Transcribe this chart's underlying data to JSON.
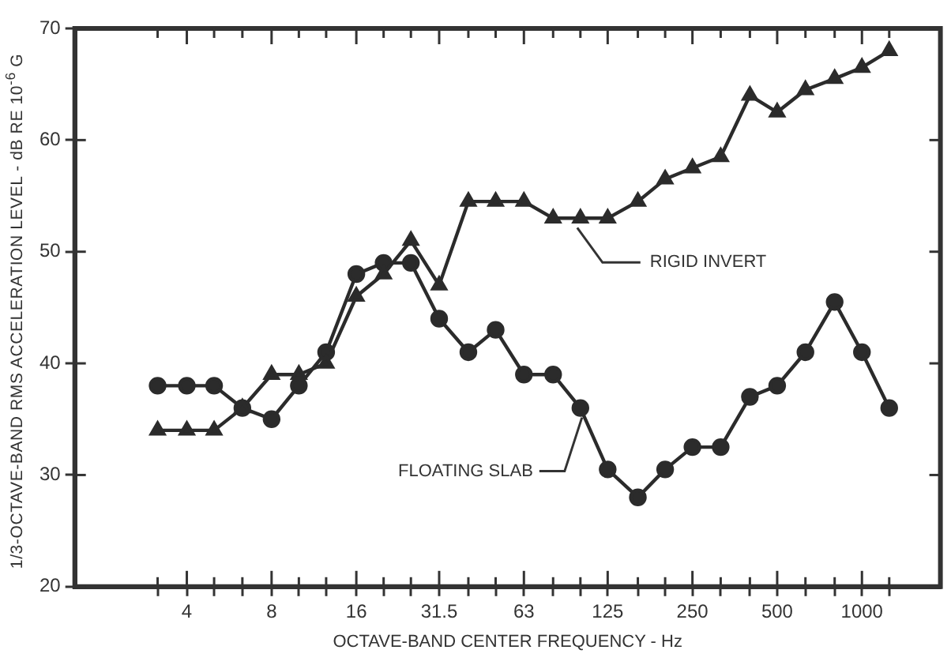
{
  "chart_data": {
    "type": "line",
    "xlabel": "OCTAVE-BAND CENTER FREQUENCY - Hz",
    "ylabel": "1/3-OCTAVE-BAND RMS ACCELERATION LEVEL - dB RE 10$^{-6}$ G",
    "x": [
      3.15,
      4,
      5,
      6.3,
      8,
      10,
      12.5,
      16,
      20,
      25,
      31.5,
      40,
      50,
      63,
      80,
      100,
      125,
      160,
      200,
      250,
      315,
      400,
      500,
      630,
      800,
      1000,
      1250
    ],
    "series": [
      {
        "color": "#2b2b2b",
        "marker": "triangle",
        "values": [
          34,
          34,
          34,
          36,
          39,
          39,
          40,
          46,
          48,
          51,
          47,
          54.5,
          54.5,
          54.5,
          53,
          53,
          53,
          54.5,
          56.5,
          57.5,
          58.5,
          64,
          62.5,
          64.5,
          65.5,
          66.5,
          68
        ]
      },
      {
        "color": "#2b2b2b",
        "marker": "circle",
        "values": [
          38,
          38,
          38,
          36,
          35,
          38,
          41,
          48,
          49,
          49,
          44,
          41,
          43,
          39,
          39,
          36,
          30.5,
          28,
          30.5,
          32.5,
          32.5,
          37,
          38,
          41,
          45.5,
          41,
          36
        ]
      }
    ],
    "log": "x",
    "xlim": [
      1.6,
      1900
    ],
    "xticks": [
      {
        "value": 3.15,
        "label": null
      },
      4,
      {
        "value": 5,
        "label": null
      },
      {
        "value": 6.3,
        "label": null
      },
      8,
      {
        "value": 10,
        "label": null
      },
      {
        "value": 12.5,
        "label": null
      },
      16,
      {
        "value": 20,
        "label": null
      },
      {
        "value": 25,
        "label": null
      },
      31.5,
      {
        "value": 40,
        "label": null
      },
      {
        "value": 50,
        "label": null
      },
      63,
      {
        "value": 80,
        "label": null
      },
      {
        "value": 100,
        "label": null
      },
      125,
      {
        "value": 160,
        "label": null
      },
      {
        "value": 200,
        "label": null
      },
      250,
      {
        "value": 315,
        "label": null
      },
      {
        "value": 400,
        "label": null
      },
      500,
      {
        "value": 630,
        "label": null
      },
      {
        "value": 800,
        "label": null
      },
      1000,
      {
        "value": 1250,
        "label": null
      }
    ],
    "ylim": [
      20,
      70
    ],
    "yticks": [
      20,
      30,
      40,
      50,
      60,
      70
    ],
    "annotations": [
      {
        "text": "RIGID INVERT",
        "x": 100,
        "y": 53
      },
      {
        "text": "FLOATING SLAB",
        "x": 100,
        "y": 36
      }
    ],
    "grid": false,
    "legend": false,
    "line_style": "solid"
  }
}
